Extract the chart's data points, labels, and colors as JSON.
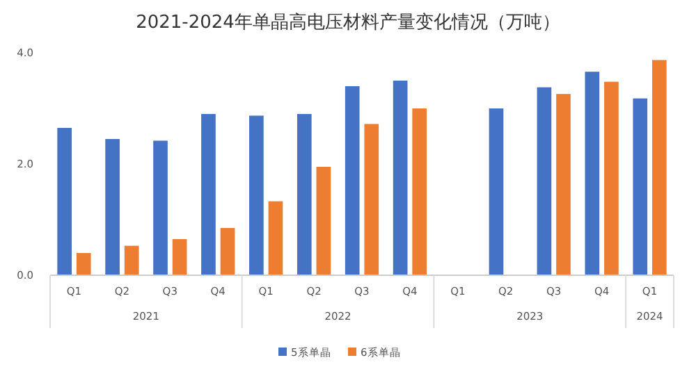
{
  "chart_data": {
    "type": "bar",
    "title": "2021-2024年单晶高电压材料产量变化情况（万吨）",
    "categories": [
      "Q1",
      "Q2",
      "Q3",
      "Q4",
      "Q1",
      "Q2",
      "Q3",
      "Q4",
      "Q1",
      "Q2",
      "Q3",
      "Q4",
      "Q1"
    ],
    "series": [
      {
        "name": "5系单晶",
        "color": "#4472c4",
        "values": [
          2.65,
          2.45,
          2.42,
          2.9,
          2.87,
          2.9,
          3.4,
          3.5,
          null,
          3.0,
          3.38,
          3.66,
          3.18
        ]
      },
      {
        "name": "6系单晶",
        "color": "#ed7d31",
        "values": [
          0.4,
          0.53,
          0.65,
          0.85,
          1.33,
          1.95,
          2.72,
          3.0,
          null,
          null,
          3.26,
          3.48,
          3.87
        ]
      }
    ],
    "annotations": [
      "2021",
      "2022",
      "2023",
      "2024"
    ],
    "ylim": [
      0,
      4.0
    ],
    "yticks": [
      {
        "value": 0,
        "label": "0.0"
      },
      {
        "value": 2,
        "label": "2.0"
      },
      {
        "value": 4,
        "label": "4.0"
      }
    ],
    "grid": false,
    "legend": "bottom"
  }
}
